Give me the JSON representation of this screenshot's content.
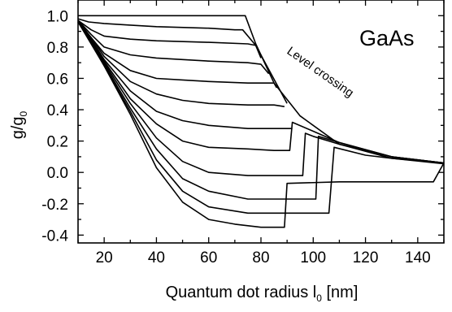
{
  "chart_data": {
    "type": "line",
    "material_label": "GaAs",
    "annotation": "Level crossing",
    "xlabel": {
      "main": "Quantum dot radius l",
      "subscript": "0",
      "unit": " [nm]"
    },
    "ylabel": {
      "main": "g/g",
      "subscript": "0"
    },
    "xlim": [
      10,
      150
    ],
    "ylim": [
      -0.45,
      1.1
    ],
    "x_ticks": [
      20,
      40,
      60,
      80,
      100,
      120,
      140
    ],
    "x_tick_labels": [
      "20",
      "40",
      "60",
      "80",
      "100",
      "120",
      "140"
    ],
    "y_ticks": [
      1.0,
      0.8,
      0.6,
      0.4,
      0.2,
      0.0,
      -0.2,
      -0.4
    ],
    "y_tick_labels": [
      "1.0",
      "0.8",
      "0.6",
      "0.4",
      "0.2",
      "0.0",
      "-0.2",
      "-0.4"
    ],
    "grid": false,
    "series": [
      {
        "x": [
          10,
          20,
          40,
          60,
          70,
          74,
          78,
          85,
          95,
          110,
          130,
          150
        ],
        "y": [
          1.0,
          1.0,
          1.0,
          1.0,
          1.0,
          1.0,
          0.82,
          0.57,
          0.36,
          0.18,
          0.09,
          0.055
        ]
      },
      {
        "x": [
          10,
          14,
          20,
          30,
          40,
          60,
          70,
          73,
          78,
          90
        ],
        "y": [
          0.98,
          0.96,
          0.95,
          0.94,
          0.93,
          0.92,
          0.91,
          0.91,
          0.81,
          0.44
        ]
      },
      {
        "x": [
          10,
          15,
          20,
          30,
          40,
          60,
          75,
          78,
          80
        ],
        "y": [
          0.97,
          0.91,
          0.87,
          0.85,
          0.84,
          0.83,
          0.82,
          0.81,
          0.73
        ]
      },
      {
        "x": [
          10,
          15,
          20,
          30,
          40,
          50,
          60,
          75,
          80,
          83
        ],
        "y": [
          0.97,
          0.88,
          0.8,
          0.75,
          0.73,
          0.72,
          0.71,
          0.7,
          0.69,
          0.63
        ]
      },
      {
        "x": [
          10,
          15,
          20,
          30,
          40,
          50,
          60,
          75,
          85,
          86
        ],
        "y": [
          0.97,
          0.86,
          0.76,
          0.65,
          0.6,
          0.59,
          0.58,
          0.57,
          0.57,
          0.54
        ]
      },
      {
        "x": [
          10,
          15,
          20,
          30,
          40,
          50,
          60,
          75,
          85,
          89
        ],
        "y": [
          0.96,
          0.86,
          0.74,
          0.58,
          0.5,
          0.46,
          0.44,
          0.43,
          0.43,
          0.42
        ]
      },
      {
        "x": [
          10,
          15,
          20,
          30,
          40,
          50,
          60,
          75,
          85,
          92
        ],
        "y": [
          0.96,
          0.85,
          0.72,
          0.52,
          0.39,
          0.33,
          0.3,
          0.28,
          0.28,
          0.28
        ]
      },
      {
        "x": [
          10,
          15,
          20,
          30,
          40,
          50,
          60,
          75,
          85,
          88,
          91,
          92,
          99,
          110,
          130,
          150
        ],
        "y": [
          0.96,
          0.84,
          0.71,
          0.47,
          0.31,
          0.2,
          0.16,
          0.15,
          0.14,
          0.14,
          0.14,
          0.32,
          0.27,
          0.19,
          0.1,
          0.06
        ]
      },
      {
        "x": [
          10,
          15,
          20,
          30,
          40,
          50,
          60,
          75,
          90,
          96,
          97,
          100,
          106,
          110,
          130,
          150
        ],
        "y": [
          0.96,
          0.84,
          0.7,
          0.44,
          0.22,
          0.07,
          0.0,
          -0.02,
          -0.02,
          -0.02,
          0.25,
          0.23,
          0.2,
          0.18,
          0.1,
          0.06
        ]
      },
      {
        "x": [
          10,
          15,
          20,
          30,
          40,
          50,
          60,
          75,
          90,
          101,
          102,
          108,
          130,
          150
        ],
        "y": [
          0.96,
          0.83,
          0.69,
          0.41,
          0.15,
          -0.04,
          -0.12,
          -0.17,
          -0.17,
          -0.17,
          0.23,
          0.2,
          0.1,
          0.06
        ]
      },
      {
        "x": [
          10,
          15,
          20,
          30,
          40,
          50,
          60,
          75,
          95,
          106,
          108,
          120,
          130,
          150
        ],
        "y": [
          0.96,
          0.83,
          0.68,
          0.39,
          0.08,
          -0.12,
          -0.22,
          -0.26,
          -0.26,
          -0.26,
          0.16,
          0.11,
          0.09,
          0.06
        ]
      },
      {
        "x": [
          10,
          15,
          20,
          30,
          40,
          50,
          60,
          70,
          80,
          89,
          90,
          110,
          130,
          146,
          150
        ],
        "y": [
          0.96,
          0.82,
          0.68,
          0.37,
          0.03,
          -0.19,
          -0.3,
          -0.33,
          -0.35,
          -0.35,
          -0.07,
          -0.06,
          -0.06,
          -0.06,
          0.06
        ]
      }
    ]
  }
}
